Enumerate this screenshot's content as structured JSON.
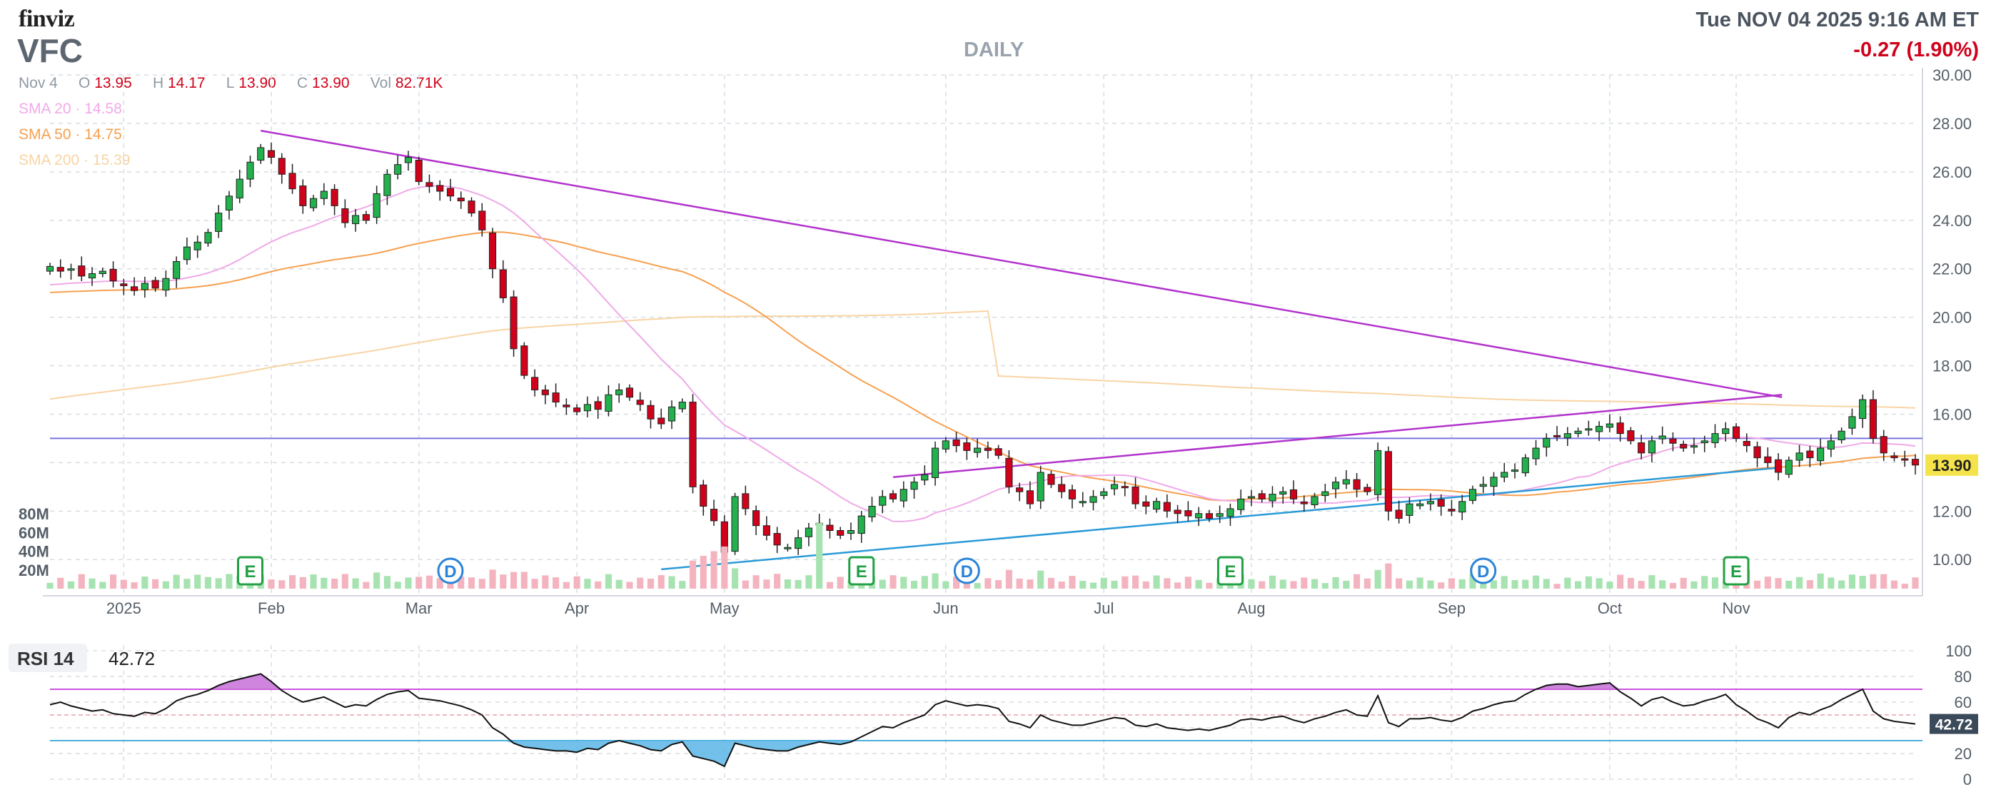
{
  "header": {
    "logo": "finviz",
    "ticker": "VFC",
    "period": "DAILY",
    "datetime": "Tue NOV 04 2025 9:16 AM ET",
    "change": "-0.27 (1.90%)"
  },
  "ohlc": {
    "date": "Nov 4",
    "o_label": "O",
    "o": "13.95",
    "h_label": "H",
    "h": "14.17",
    "l_label": "L",
    "l": "13.90",
    "c_label": "C",
    "c": "13.90",
    "vol_label": "Vol",
    "vol": "82.71K"
  },
  "sma": {
    "sma20": "SMA 20 · 14.58",
    "sma50": "SMA 50 · 14.75",
    "sma200": "SMA 200 · 15.39"
  },
  "colors": {
    "up": "#22b14c",
    "down": "#d0021b",
    "vol_up": "#a6e3b0",
    "vol_down": "#f4b4bf",
    "sma20": "#f0a9e8",
    "sma50": "#f6a050",
    "sma200": "#f8d4a4",
    "trend_purple": "#b233cc",
    "trend_blue": "#2a9ad8",
    "horizontal": "#7a74e0",
    "price_tag": "#f4e34a",
    "event": "#22a045",
    "dividend": "#2a84d8"
  },
  "rsi": {
    "label": "RSI 14",
    "value": "42.72",
    "value_tag": "42.72",
    "overbought": 70,
    "oversold": 30
  },
  "chart_data": [
    {
      "type": "candlestick",
      "title": "VFC DAILY",
      "ylim": [
        8.8,
        30.0
      ],
      "y_ticks": [
        "30.00",
        "28.00",
        "26.00",
        "24.00",
        "22.00",
        "20.00",
        "18.00",
        "16.00",
        "14.00",
        "12.00",
        "10.00"
      ],
      "y_tick_values": [
        30,
        28,
        26,
        24,
        22,
        20,
        18,
        16,
        14,
        12,
        10
      ],
      "x_labels": [
        "2025",
        "Feb",
        "Mar",
        "Apr",
        "May",
        "Jun",
        "Jul",
        "Aug",
        "Sep",
        "Oct",
        "Nov"
      ],
      "x_label_index": [
        7,
        21,
        35,
        50,
        64,
        85,
        100,
        114,
        133,
        148,
        160
      ],
      "last_price": "13.90",
      "horizontal_level": 15.0,
      "volume_ticks": [
        "80M",
        "60M",
        "40M",
        "20M"
      ],
      "volume_max": 80,
      "trendlines": [
        {
          "from": [
            20,
            27.7
          ],
          "to": [
            163,
            16.7
          ],
          "color": "purple"
        },
        {
          "from": [
            80,
            13.4
          ],
          "to": [
            163,
            16.8
          ],
          "color": "purple"
        },
        {
          "from": [
            58,
            9.6
          ],
          "to": [
            163,
            13.8
          ],
          "color": "blue"
        }
      ],
      "events": [
        {
          "index": 19,
          "text": "E",
          "kind": "earnings"
        },
        {
          "index": 38,
          "text": "D",
          "kind": "dividend"
        },
        {
          "index": 77,
          "text": "E",
          "kind": "earnings"
        },
        {
          "index": 87,
          "text": "D",
          "kind": "dividend"
        },
        {
          "index": 112,
          "text": "E",
          "kind": "earnings"
        },
        {
          "index": 136,
          "text": "D",
          "kind": "dividend"
        },
        {
          "index": 160,
          "text": "E",
          "kind": "earnings"
        }
      ],
      "closes": [
        22.1,
        21.9,
        22.0,
        21.7,
        21.8,
        21.9,
        21.5,
        21.3,
        21.1,
        21.4,
        21.2,
        21.6,
        22.3,
        22.9,
        23.1,
        23.5,
        24.3,
        25.0,
        25.7,
        26.4,
        27.0,
        26.6,
        25.9,
        25.3,
        24.6,
        24.9,
        25.2,
        24.6,
        23.9,
        24.2,
        24.0,
        25.1,
        25.9,
        26.3,
        26.6,
        25.6,
        25.4,
        25.2,
        25.0,
        24.8,
        24.3,
        23.6,
        22.0,
        20.8,
        18.7,
        17.6,
        17.0,
        16.8,
        16.5,
        16.3,
        16.1,
        16.4,
        16.2,
        16.8,
        17.0,
        16.7,
        16.4,
        15.8,
        15.6,
        16.3,
        16.5,
        13.0,
        12.2,
        11.6,
        10.3,
        12.6,
        12.1,
        11.4,
        11.0,
        10.6,
        10.5,
        10.9,
        11.3,
        11.5,
        11.2,
        11.0,
        11.2,
        11.8,
        12.2,
        12.6,
        12.5,
        12.9,
        13.2,
        13.5,
        14.6,
        14.9,
        14.7,
        14.5,
        14.6,
        14.5,
        14.3,
        13.0,
        12.8,
        12.3,
        13.6,
        13.1,
        12.8,
        12.5,
        12.4,
        12.6,
        12.8,
        13.1,
        13.0,
        12.3,
        12.2,
        12.4,
        12.0,
        11.9,
        11.8,
        11.9,
        11.7,
        11.9,
        12.1,
        12.5,
        12.6,
        12.5,
        12.7,
        12.8,
        12.5,
        12.3,
        12.6,
        12.8,
        13.2,
        13.3,
        12.9,
        12.8,
        14.5,
        12.0,
        11.7,
        12.3,
        12.3,
        12.4,
        12.2,
        12.0,
        12.4,
        12.9,
        13.1,
        13.4,
        13.6,
        13.7,
        14.2,
        14.6,
        15.0,
        15.1,
        15.2,
        15.3,
        15.4,
        15.5,
        15.6,
        15.2,
        14.9,
        14.4,
        14.9,
        15.1,
        14.8,
        14.6,
        14.7,
        14.9,
        15.2,
        15.4,
        15.0,
        14.7,
        14.2,
        14.0,
        13.6,
        14.1,
        14.4,
        14.2,
        14.6,
        14.9,
        15.3,
        15.9,
        16.6,
        15.0,
        14.4,
        14.2,
        14.1,
        13.9
      ],
      "rsi_ylim": [
        0,
        100
      ],
      "rsi_ticks": [
        100,
        80,
        60,
        40,
        20,
        0
      ],
      "rsi": [
        58,
        60,
        57,
        55,
        53,
        54,
        51,
        50,
        49,
        52,
        51,
        55,
        61,
        64,
        66,
        69,
        73,
        76,
        78,
        80,
        82,
        76,
        69,
        64,
        60,
        62,
        64,
        60,
        56,
        58,
        57,
        62,
        66,
        68,
        69,
        63,
        62,
        61,
        59,
        57,
        54,
        50,
        40,
        35,
        28,
        25,
        24,
        23,
        22,
        22,
        21,
        24,
        23,
        28,
        30,
        28,
        26,
        23,
        22,
        27,
        29,
        18,
        16,
        14,
        10,
        28,
        26,
        24,
        23,
        22,
        22,
        25,
        27,
        29,
        28,
        27,
        29,
        33,
        37,
        41,
        40,
        44,
        47,
        50,
        58,
        61,
        59,
        57,
        58,
        57,
        55,
        45,
        43,
        40,
        50,
        46,
        44,
        42,
        42,
        44,
        46,
        48,
        47,
        42,
        41,
        43,
        40,
        39,
        38,
        39,
        38,
        40,
        42,
        46,
        47,
        46,
        48,
        49,
        46,
        44,
        47,
        49,
        52,
        54,
        50,
        49,
        65,
        44,
        41,
        47,
        47,
        48,
        46,
        45,
        48,
        53,
        55,
        58,
        60,
        61,
        66,
        70,
        73,
        74,
        74,
        72,
        73,
        74,
        75,
        68,
        63,
        57,
        62,
        64,
        60,
        57,
        58,
        61,
        63,
        66,
        58,
        53,
        47,
        44,
        40,
        48,
        52,
        50,
        54,
        57,
        62,
        66,
        70,
        53,
        47,
        45,
        44,
        43
      ]
    }
  ]
}
